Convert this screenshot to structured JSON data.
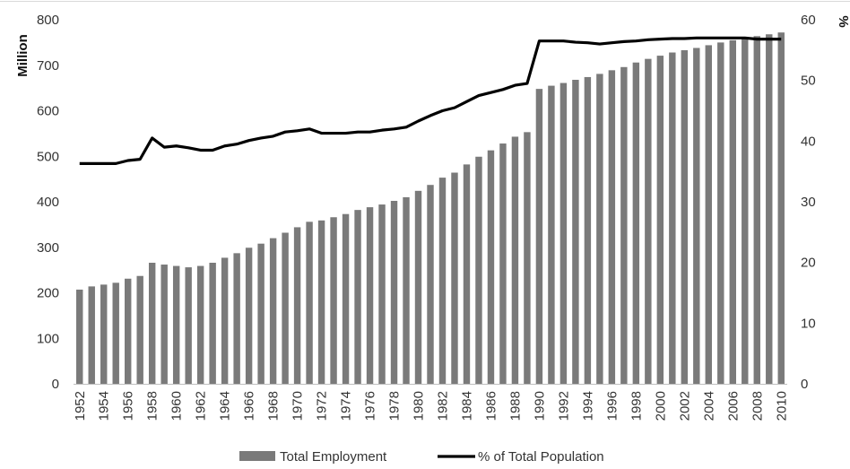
{
  "chart_data": {
    "type": "bar",
    "x_label_step": 2,
    "left_axis": {
      "label": "Million",
      "ylim": [
        0,
        800
      ],
      "ticks": [
        0,
        100,
        200,
        300,
        400,
        500,
        600,
        700,
        800
      ]
    },
    "right_axis": {
      "label": "%",
      "ylim": [
        0,
        60
      ],
      "ticks": [
        0,
        10,
        20,
        30,
        40,
        50,
        60
      ]
    },
    "grid": false,
    "legend_position": "bottom",
    "colors": {
      "bars": "#7a7a7a",
      "line": "#000000",
      "text": "#333333"
    },
    "categories": [
      1952,
      1953,
      1954,
      1955,
      1956,
      1957,
      1958,
      1959,
      1960,
      1961,
      1962,
      1963,
      1964,
      1965,
      1966,
      1967,
      1968,
      1969,
      1970,
      1971,
      1972,
      1973,
      1974,
      1975,
      1976,
      1977,
      1978,
      1979,
      1980,
      1981,
      1982,
      1983,
      1984,
      1985,
      1986,
      1987,
      1988,
      1989,
      1990,
      1991,
      1992,
      1993,
      1994,
      1995,
      1996,
      1997,
      1998,
      1999,
      2000,
      2001,
      2002,
      2003,
      2004,
      2005,
      2006,
      2007,
      2008,
      2009,
      2010
    ],
    "series": [
      {
        "name": "Total Employment",
        "type": "bar",
        "axis": "left",
        "values": [
          207,
          214,
          218,
          222,
          231,
          237,
          266,
          262,
          259,
          256,
          259,
          266,
          277,
          287,
          299,
          308,
          320,
          332,
          344,
          356,
          359,
          366,
          373,
          382,
          388,
          394,
          402,
          410,
          424,
          437,
          453,
          464,
          482,
          499,
          513,
          528,
          543,
          553,
          648,
          655,
          661,
          668,
          674,
          681,
          689,
          696,
          706,
          714,
          721,
          728,
          733,
          738,
          744,
          750,
          755,
          760,
          764,
          768,
          772
        ]
      },
      {
        "name": "% of Total Population",
        "type": "line",
        "axis": "right",
        "values": [
          36.3,
          36.3,
          36.3,
          36.3,
          36.8,
          37.0,
          40.5,
          39.0,
          39.2,
          38.9,
          38.5,
          38.5,
          39.2,
          39.5,
          40.1,
          40.5,
          40.8,
          41.5,
          41.7,
          42.0,
          41.3,
          41.3,
          41.3,
          41.5,
          41.5,
          41.8,
          42.0,
          42.3,
          43.3,
          44.2,
          45.0,
          45.5,
          46.5,
          47.5,
          48.0,
          48.5,
          49.2,
          49.5,
          56.5,
          56.5,
          56.5,
          56.3,
          56.2,
          56.0,
          56.2,
          56.4,
          56.5,
          56.7,
          56.8,
          56.9,
          56.9,
          57.0,
          57.0,
          57.0,
          57.0,
          57.0,
          56.8,
          56.8,
          56.8
        ]
      }
    ]
  }
}
